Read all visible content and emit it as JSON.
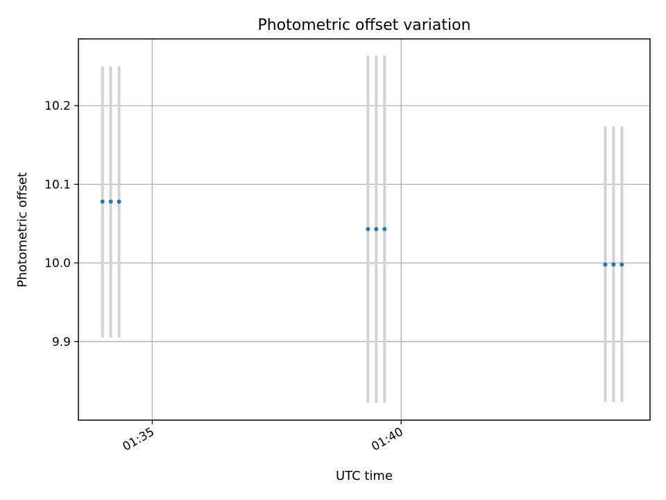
{
  "chart_data": {
    "type": "scatter",
    "title": "Photometric offset variation",
    "xlabel": "UTC time",
    "ylabel": "Photometric offset",
    "x_ticks": [
      {
        "value": "01:35",
        "label": "01:35"
      },
      {
        "value": "01:40",
        "label": "01:40"
      }
    ],
    "y_ticks": [
      9.9,
      10.0,
      10.1,
      10.2
    ],
    "xlim": [
      "01:33:31",
      "01:45:00"
    ],
    "ylim": [
      9.8,
      10.285
    ],
    "grid": true,
    "points": [
      {
        "x": "01:34:00",
        "y": 10.078,
        "err_low": 9.905,
        "err_high": 10.25
      },
      {
        "x": "01:34:10",
        "y": 10.078,
        "err_low": 9.905,
        "err_high": 10.25
      },
      {
        "x": "01:34:20",
        "y": 10.078,
        "err_low": 9.905,
        "err_high": 10.25
      },
      {
        "x": "01:39:20",
        "y": 10.043,
        "err_low": 9.822,
        "err_high": 10.264
      },
      {
        "x": "01:39:30",
        "y": 10.043,
        "err_low": 9.822,
        "err_high": 10.264
      },
      {
        "x": "01:39:40",
        "y": 10.043,
        "err_low": 9.822,
        "err_high": 10.264
      },
      {
        "x": "01:44:06",
        "y": 9.998,
        "err_low": 9.823,
        "err_high": 10.174
      },
      {
        "x": "01:44:16",
        "y": 9.998,
        "err_low": 9.823,
        "err_high": 10.174
      },
      {
        "x": "01:44:26",
        "y": 9.998,
        "err_low": 9.823,
        "err_high": 10.174
      }
    ],
    "colors": {
      "points": "#1f77b4",
      "errorbars": "#d3d3d3",
      "grid": "#b0b0b0"
    }
  }
}
